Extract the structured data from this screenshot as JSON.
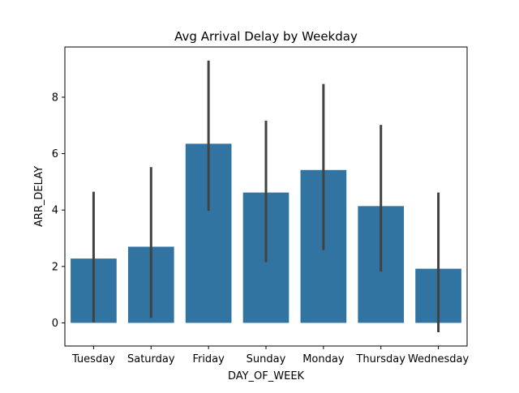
{
  "chart_data": {
    "type": "bar",
    "title": "Avg Arrival Delay by Weekday",
    "xlabel": "DAY_OF_WEEK",
    "ylabel": "ARR_DELAY",
    "categories": [
      "Tuesday",
      "Saturday",
      "Friday",
      "Sunday",
      "Monday",
      "Thursday",
      "Wednesday"
    ],
    "values": [
      2.28,
      2.7,
      6.35,
      4.62,
      5.42,
      4.14,
      1.92
    ],
    "error_low": [
      0.02,
      0.18,
      3.97,
      2.15,
      2.58,
      1.82,
      -0.33
    ],
    "error_high": [
      4.65,
      5.52,
      9.3,
      7.17,
      8.47,
      7.02,
      4.62
    ],
    "ylim": [
      -0.82,
      9.78
    ],
    "yticks": [
      0,
      2,
      4,
      6,
      8
    ],
    "grid": false,
    "bar_color": "#3274a1",
    "errorbar_color": "#424242"
  }
}
